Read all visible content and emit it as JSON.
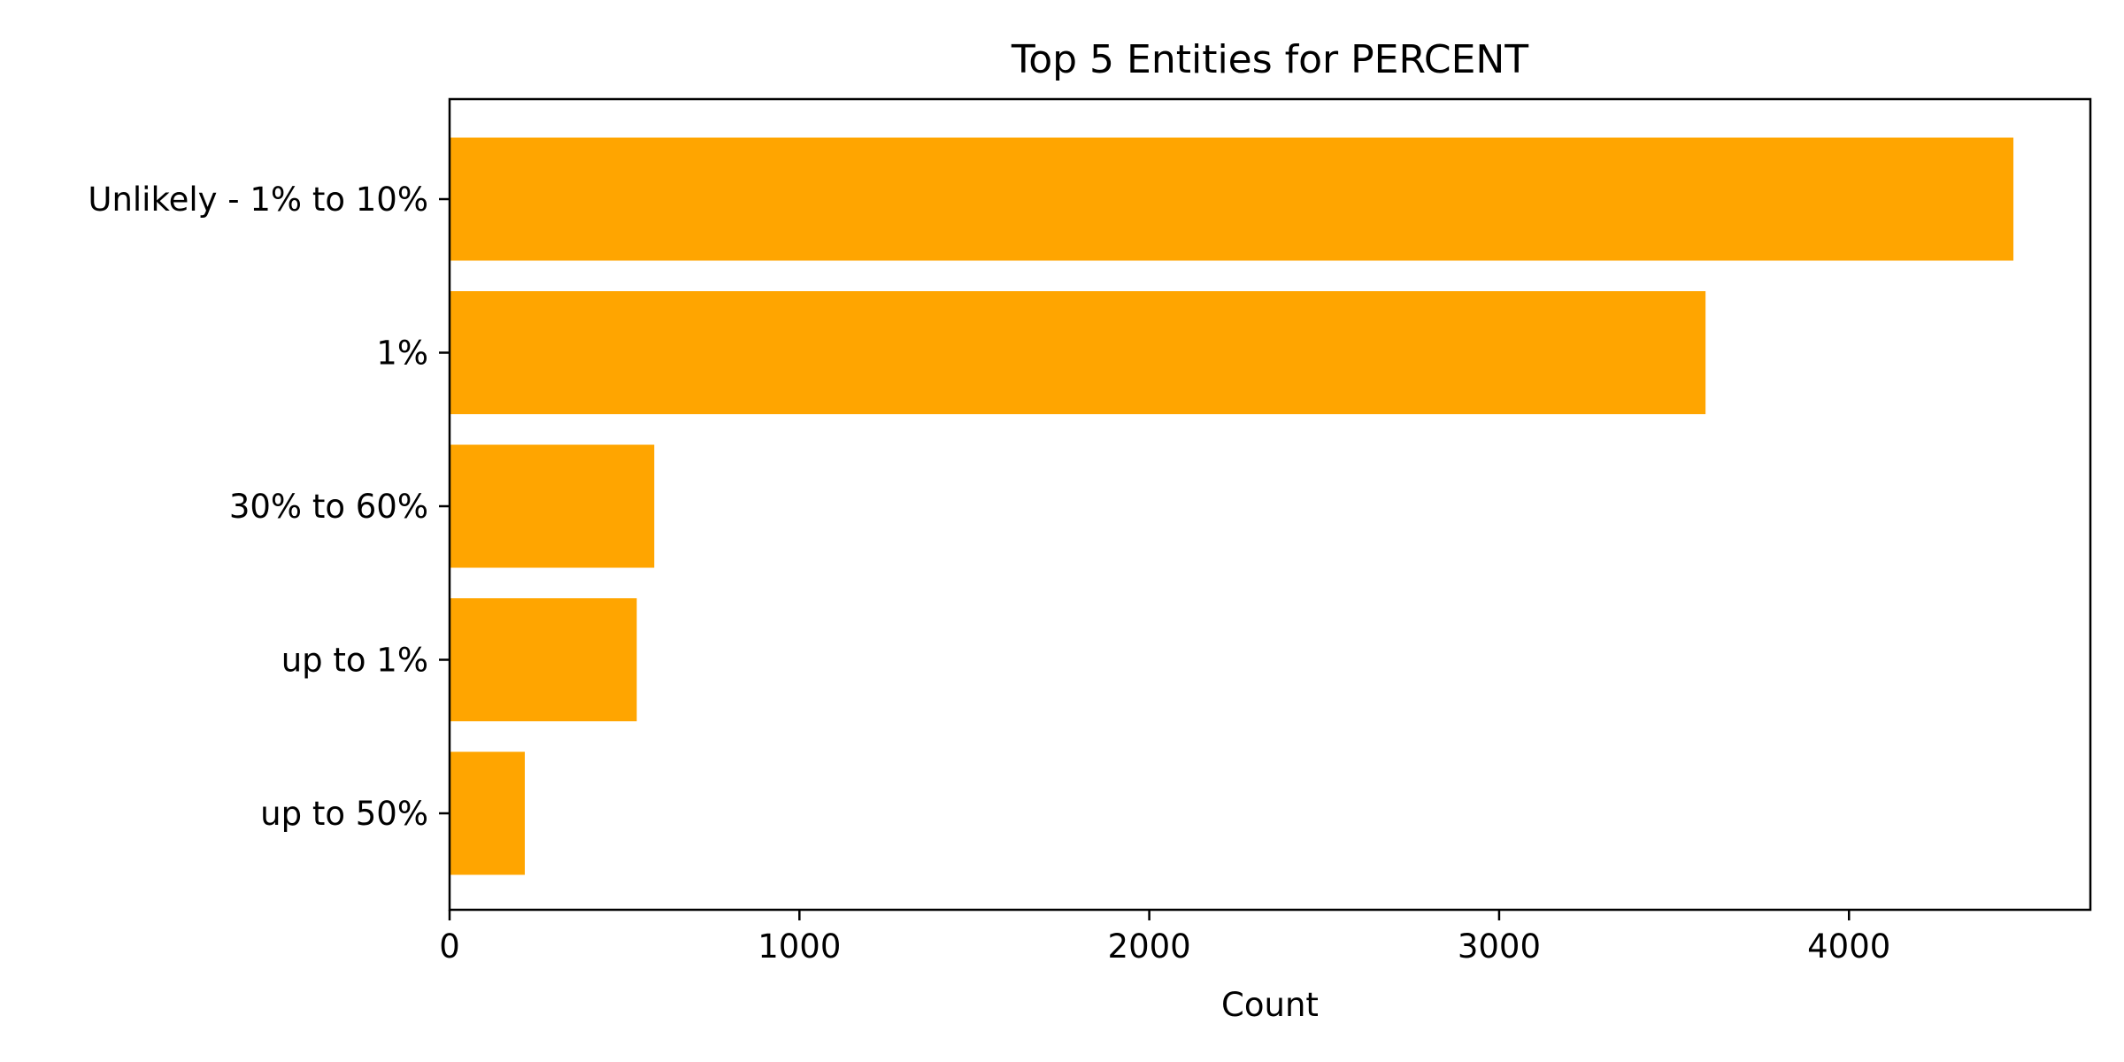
{
  "chart_data": {
    "type": "bar",
    "orientation": "horizontal",
    "title": "Top 5 Entities for PERCENT",
    "xlabel": "Count",
    "ylabel": "",
    "categories": [
      "Unlikely - 1% to 10%",
      "1%",
      "30% to 60%",
      "up to 1%",
      "up to 50%"
    ],
    "values": [
      4470,
      3590,
      585,
      535,
      215
    ],
    "xlim": [
      0,
      4690
    ],
    "xticks": [
      0,
      1000,
      2000,
      3000,
      4000
    ],
    "bar_color": "#FFA500",
    "grid": false,
    "legend": "none"
  }
}
